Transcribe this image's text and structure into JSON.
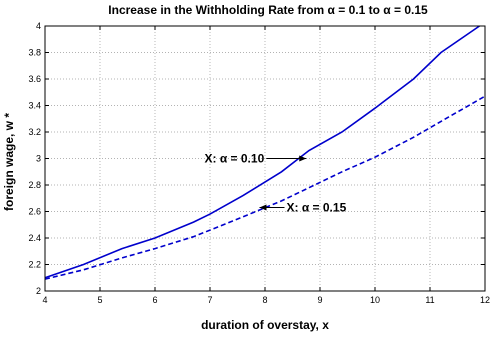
{
  "chart_data": {
    "type": "line",
    "title": "Increase in the Withholding Rate from α = 0.1 to α = 0.15",
    "xlabel": "duration of overstay, x",
    "ylabel": "foreign wage, w *",
    "xlim": [
      4,
      12
    ],
    "ylim": [
      2,
      4
    ],
    "x_ticks": [
      "4",
      "5",
      "6",
      "7",
      "8",
      "9",
      "10",
      "11",
      "12"
    ],
    "y_ticks": [
      "2",
      "2.2",
      "2.4",
      "2.6",
      "2.8",
      "3",
      "3.2",
      "3.4",
      "3.6",
      "3.8",
      "4"
    ],
    "grid": true,
    "series": [
      {
        "name": "X: α = 0.10",
        "style": "solid",
        "color": "#0000cc",
        "x": [
          4,
          4.7,
          5.4,
          6,
          6.7,
          7,
          7.6,
          8.3,
          8.8,
          9.4,
          10,
          10.7,
          11.2,
          11.9
        ],
        "y": [
          2.1,
          2.2,
          2.32,
          2.4,
          2.52,
          2.58,
          2.72,
          2.9,
          3.06,
          3.2,
          3.38,
          3.6,
          3.8,
          4.0
        ]
      },
      {
        "name": "X: α = 0.15",
        "style": "dashed",
        "color": "#0000cc",
        "x": [
          4,
          4.7,
          5.4,
          6,
          6.7,
          7,
          7.6,
          8.3,
          8.8,
          9.4,
          10,
          10.7,
          11.2,
          12
        ],
        "y": [
          2.09,
          2.16,
          2.25,
          2.32,
          2.41,
          2.46,
          2.56,
          2.68,
          2.78,
          2.9,
          3.01,
          3.16,
          3.28,
          3.47
        ]
      }
    ],
    "annotations": [
      {
        "text": "X: α = 0.10",
        "arrow_to": [
          8.75,
          3.0
        ],
        "text_side": "left"
      },
      {
        "text": "X: α = 0.15",
        "arrow_to": [
          7.9,
          2.63
        ],
        "text_side": "right"
      }
    ]
  }
}
